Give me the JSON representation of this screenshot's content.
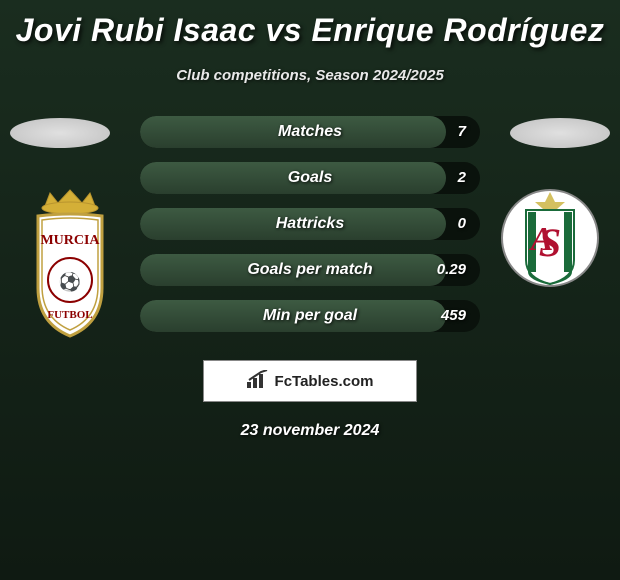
{
  "title": "Jovi Rubi Isaac vs Enrique Rodríguez",
  "subtitle": "Club competitions, Season 2024/2025",
  "branding": {
    "label": "FcTables.com"
  },
  "date": "23 november 2024",
  "colors": {
    "bg_top": "#1a2d1f",
    "bg_bottom": "#0f1a12",
    "bar_track": "#0a120c",
    "bar_fill_top": "#3d5a42",
    "bar_fill_bottom": "#2a3f2e",
    "text": "#ffffff"
  },
  "player_left": {
    "club_name": "Murcia",
    "crest_colors": {
      "shield": "#ffffff",
      "crown": "#d4af37",
      "text": "#8b0000",
      "border": "#c0a040"
    }
  },
  "player_right": {
    "club_name": "AS",
    "crest_colors": {
      "circle": "#ffffff",
      "stripes": "#1a6b3a",
      "letter": "#b01030",
      "border": "#888888"
    }
  },
  "stats": [
    {
      "label": "Matches",
      "value_right": "7",
      "fill_pct": 90
    },
    {
      "label": "Goals",
      "value_right": "2",
      "fill_pct": 90
    },
    {
      "label": "Hattricks",
      "value_right": "0",
      "fill_pct": 90
    },
    {
      "label": "Goals per match",
      "value_right": "0.29",
      "fill_pct": 90
    },
    {
      "label": "Min per goal",
      "value_right": "459",
      "fill_pct": 90
    }
  ]
}
